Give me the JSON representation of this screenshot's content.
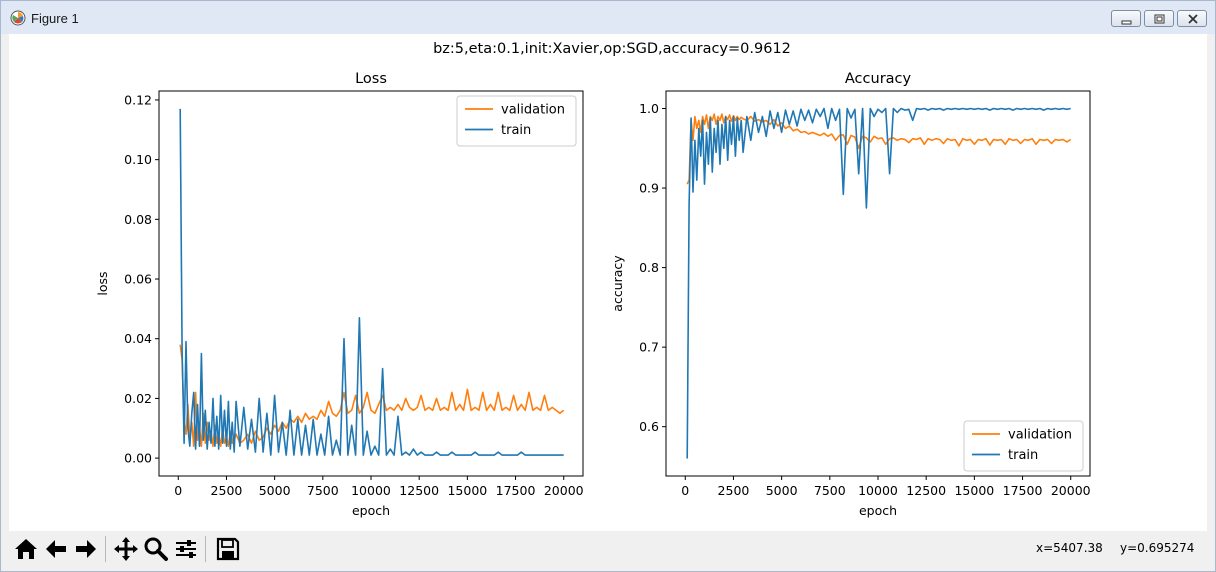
{
  "window": {
    "title": "Figure 1"
  },
  "figure": {
    "suptitle": "bz:5,eta:0.1,init:Xavier,op:SGD,accuracy=0.9612"
  },
  "status": {
    "x_readout": "x=5407.38",
    "y_readout": "y=0.695274"
  },
  "colors": {
    "validation": "#ff7f0e",
    "train": "#1f77b4"
  },
  "toolbar": {
    "icons": [
      "home-icon",
      "back-arrow-icon",
      "forward-arrow-icon",
      "pan-icon",
      "zoom-icon",
      "configure-subplots-icon",
      "save-icon"
    ]
  },
  "chart_data": [
    {
      "type": "line",
      "title": "Loss",
      "xlabel": "epoch",
      "ylabel": "loss",
      "xlim": [
        -1000,
        21000
      ],
      "ylim": [
        -0.006,
        0.123
      ],
      "xticks": [
        0,
        2500,
        5000,
        7500,
        10000,
        12500,
        15000,
        17500,
        20000
      ],
      "yticks": [
        0.0,
        0.02,
        0.04,
        0.06,
        0.08,
        0.1,
        0.12
      ],
      "ytick_labels": [
        "0.00",
        "0.02",
        "0.04",
        "0.06",
        "0.08",
        "0.10",
        "0.12"
      ],
      "legend": "upper right",
      "series": [
        {
          "name": "validation",
          "x": [
            100,
            200,
            300,
            400,
            500,
            600,
            700,
            800,
            900,
            1000,
            1100,
            1200,
            1300,
            1400,
            1500,
            1600,
            1700,
            1800,
            1900,
            2000,
            2100,
            2200,
            2300,
            2400,
            2500,
            2600,
            2700,
            2800,
            2900,
            3000,
            3200,
            3400,
            3600,
            3800,
            4000,
            4200,
            4400,
            4600,
            4800,
            5000,
            5200,
            5400,
            5600,
            5800,
            6000,
            6200,
            6400,
            6600,
            6800,
            7000,
            7200,
            7400,
            7600,
            7800,
            8000,
            8200,
            8400,
            8600,
            8800,
            9000,
            9200,
            9400,
            9600,
            9800,
            10000,
            10200,
            10400,
            10600,
            10800,
            11000,
            11200,
            11400,
            11600,
            11800,
            12000,
            12200,
            12400,
            12600,
            12800,
            13000,
            13200,
            13400,
            13600,
            13800,
            14000,
            14200,
            14400,
            14600,
            14800,
            15000,
            15200,
            15400,
            15600,
            15800,
            16000,
            16200,
            16400,
            16600,
            16800,
            17000,
            17200,
            17400,
            17600,
            17800,
            18000,
            18200,
            18400,
            18600,
            18800,
            19000,
            19200,
            19400,
            19600,
            19800,
            20000
          ],
          "y": [
            0.038,
            0.033,
            0.012,
            0.008,
            0.018,
            0.006,
            0.012,
            0.004,
            0.022,
            0.006,
            0.01,
            0.004,
            0.015,
            0.005,
            0.012,
            0.006,
            0.009,
            0.004,
            0.011,
            0.005,
            0.008,
            0.004,
            0.01,
            0.005,
            0.007,
            0.004,
            0.009,
            0.005,
            0.006,
            0.008,
            0.005,
            0.006,
            0.008,
            0.005,
            0.009,
            0.006,
            0.007,
            0.01,
            0.008,
            0.011,
            0.009,
            0.012,
            0.01,
            0.013,
            0.012,
            0.014,
            0.012,
            0.015,
            0.013,
            0.014,
            0.013,
            0.016,
            0.014,
            0.019,
            0.015,
            0.014,
            0.016,
            0.022,
            0.015,
            0.016,
            0.021,
            0.015,
            0.017,
            0.022,
            0.016,
            0.015,
            0.018,
            0.021,
            0.016,
            0.017,
            0.016,
            0.018,
            0.016,
            0.02,
            0.017,
            0.016,
            0.017,
            0.021,
            0.016,
            0.017,
            0.016,
            0.02,
            0.016,
            0.017,
            0.016,
            0.022,
            0.016,
            0.018,
            0.016,
            0.023,
            0.016,
            0.017,
            0.016,
            0.022,
            0.016,
            0.018,
            0.016,
            0.022,
            0.016,
            0.017,
            0.016,
            0.021,
            0.016,
            0.018,
            0.016,
            0.022,
            0.016,
            0.017,
            0.016,
            0.021,
            0.016,
            0.017,
            0.016,
            0.015,
            0.016
          ]
        },
        {
          "name": "train",
          "x": [
            100,
            200,
            300,
            400,
            500,
            600,
            700,
            800,
            900,
            1000,
            1100,
            1200,
            1300,
            1400,
            1500,
            1600,
            1700,
            1800,
            1900,
            2000,
            2100,
            2200,
            2300,
            2400,
            2500,
            2600,
            2700,
            2800,
            2900,
            3000,
            3200,
            3400,
            3600,
            3800,
            4000,
            4200,
            4400,
            4600,
            4800,
            5000,
            5200,
            5400,
            5600,
            5800,
            6000,
            6200,
            6400,
            6600,
            6800,
            7000,
            7200,
            7400,
            7600,
            7800,
            8000,
            8200,
            8400,
            8600,
            8800,
            9000,
            9200,
            9400,
            9600,
            9800,
            10000,
            10200,
            10400,
            10600,
            10800,
            11000,
            11200,
            11400,
            11600,
            11800,
            12000,
            12200,
            12400,
            12600,
            12800,
            13000,
            13200,
            13400,
            13600,
            13800,
            14000,
            14200,
            14400,
            14600,
            14800,
            15000,
            15200,
            15400,
            15600,
            15800,
            16000,
            16200,
            16400,
            16600,
            16800,
            17000,
            17200,
            17400,
            17600,
            17800,
            18000,
            18200,
            18400,
            18600,
            18800,
            19000,
            19200,
            19400,
            19600,
            19800,
            20000
          ],
          "y": [
            0.117,
            0.036,
            0.005,
            0.039,
            0.01,
            0.004,
            0.015,
            0.022,
            0.003,
            0.018,
            0.004,
            0.035,
            0.006,
            0.016,
            0.003,
            0.012,
            0.005,
            0.02,
            0.004,
            0.014,
            0.003,
            0.021,
            0.005,
            0.016,
            0.004,
            0.019,
            0.003,
            0.012,
            0.002,
            0.019,
            0.004,
            0.017,
            0.003,
            0.013,
            0.002,
            0.02,
            0.002,
            0.015,
            0.001,
            0.021,
            0.002,
            0.012,
            0.001,
            0.016,
            0.001,
            0.013,
            0.001,
            0.011,
            0.001,
            0.013,
            0.001,
            0.008,
            0.001,
            0.014,
            0.001,
            0.006,
            0.001,
            0.04,
            0.001,
            0.011,
            0.001,
            0.047,
            0.001,
            0.009,
            0.001,
            0.004,
            0.001,
            0.03,
            0.001,
            0.003,
            0.001,
            0.014,
            0.001,
            0.002,
            0.001,
            0.003,
            0.001,
            0.002,
            0.001,
            0.001,
            0.001,
            0.002,
            0.001,
            0.001,
            0.001,
            0.002,
            0.001,
            0.001,
            0.001,
            0.001,
            0.001,
            0.002,
            0.001,
            0.001,
            0.001,
            0.001,
            0.001,
            0.002,
            0.001,
            0.001,
            0.001,
            0.001,
            0.001,
            0.002,
            0.001,
            0.001,
            0.001,
            0.001,
            0.001,
            0.001,
            0.001,
            0.001,
            0.001,
            0.001,
            0.001
          ]
        }
      ]
    },
    {
      "type": "line",
      "title": "Accuracy",
      "xlabel": "epoch",
      "ylabel": "accuracy",
      "xlim": [
        -1000,
        21000
      ],
      "ylim": [
        0.538,
        1.022
      ],
      "xticks": [
        0,
        2500,
        5000,
        7500,
        10000,
        12500,
        15000,
        17500,
        20000
      ],
      "yticks": [
        0.6,
        0.7,
        0.8,
        0.9,
        1.0
      ],
      "ytick_labels": [
        "0.6",
        "0.7",
        "0.8",
        "0.9",
        "1.0"
      ],
      "legend": "lower right",
      "series": [
        {
          "name": "validation",
          "x": [
            100,
            200,
            300,
            400,
            500,
            600,
            700,
            800,
            900,
            1000,
            1100,
            1200,
            1300,
            1400,
            1500,
            1600,
            1700,
            1800,
            1900,
            2000,
            2100,
            2200,
            2300,
            2400,
            2500,
            2600,
            2700,
            2800,
            2900,
            3000,
            3200,
            3400,
            3600,
            3800,
            4000,
            4200,
            4400,
            4600,
            4800,
            5000,
            5200,
            5400,
            5600,
            5800,
            6000,
            6200,
            6400,
            6600,
            6800,
            7000,
            7200,
            7400,
            7600,
            7800,
            8000,
            8200,
            8400,
            8600,
            8800,
            9000,
            9200,
            9400,
            9600,
            9800,
            10000,
            10200,
            10400,
            10600,
            10800,
            11000,
            11200,
            11400,
            11600,
            11800,
            12000,
            12200,
            12400,
            12600,
            12800,
            13000,
            13200,
            13400,
            13600,
            13800,
            14000,
            14200,
            14400,
            14600,
            14800,
            15000,
            15200,
            15400,
            15600,
            15800,
            16000,
            16200,
            16400,
            16600,
            16800,
            17000,
            17200,
            17400,
            17600,
            17800,
            18000,
            18200,
            18400,
            18600,
            18800,
            19000,
            19200,
            19400,
            19600,
            19800,
            20000
          ],
          "y": [
            0.905,
            0.91,
            0.985,
            0.96,
            0.99,
            0.975,
            0.985,
            0.97,
            0.99,
            0.98,
            0.992,
            0.975,
            0.99,
            0.985,
            0.993,
            0.98,
            0.99,
            0.985,
            0.993,
            0.982,
            0.99,
            0.986,
            0.992,
            0.984,
            0.991,
            0.985,
            0.99,
            0.986,
            0.989,
            0.987,
            0.985,
            0.99,
            0.984,
            0.986,
            0.983,
            0.985,
            0.98,
            0.986,
            0.978,
            0.982,
            0.975,
            0.978,
            0.972,
            0.974,
            0.97,
            0.971,
            0.968,
            0.97,
            0.968,
            0.966,
            0.969,
            0.965,
            0.968,
            0.96,
            0.966,
            0.967,
            0.955,
            0.966,
            0.964,
            0.95,
            0.965,
            0.963,
            0.958,
            0.965,
            0.962,
            0.963,
            0.955,
            0.962,
            0.963,
            0.96,
            0.962,
            0.961,
            0.957,
            0.962,
            0.961,
            0.963,
            0.955,
            0.962,
            0.96,
            0.962,
            0.961,
            0.956,
            0.962,
            0.96,
            0.961,
            0.953,
            0.962,
            0.96,
            0.961,
            0.955,
            0.961,
            0.96,
            0.962,
            0.954,
            0.961,
            0.96,
            0.961,
            0.955,
            0.962,
            0.96,
            0.961,
            0.956,
            0.961,
            0.96,
            0.962,
            0.955,
            0.961,
            0.96,
            0.961,
            0.956,
            0.961,
            0.96,
            0.961,
            0.958,
            0.961
          ]
        },
        {
          "name": "train",
          "x": [
            100,
            200,
            300,
            400,
            500,
            600,
            700,
            800,
            900,
            1000,
            1100,
            1200,
            1300,
            1400,
            1500,
            1600,
            1700,
            1800,
            1900,
            2000,
            2100,
            2200,
            2300,
            2400,
            2500,
            2600,
            2700,
            2800,
            2900,
            3000,
            3200,
            3400,
            3600,
            3800,
            4000,
            4200,
            4400,
            4600,
            4800,
            5000,
            5200,
            5400,
            5600,
            5800,
            6000,
            6200,
            6400,
            6600,
            6800,
            7000,
            7200,
            7400,
            7600,
            7800,
            8000,
            8200,
            8400,
            8600,
            8800,
            9000,
            9200,
            9400,
            9600,
            9800,
            10000,
            10200,
            10400,
            10600,
            10800,
            11000,
            11200,
            11400,
            11600,
            11800,
            12000,
            12200,
            12400,
            12600,
            12800,
            13000,
            13200,
            13400,
            13600,
            13800,
            14000,
            14200,
            14400,
            14600,
            14800,
            15000,
            15200,
            15400,
            15600,
            15800,
            16000,
            16200,
            16400,
            16600,
            16800,
            17000,
            17200,
            17400,
            17600,
            17800,
            18000,
            18200,
            18400,
            18600,
            18800,
            19000,
            19200,
            19400,
            19600,
            19800,
            20000
          ],
          "y": [
            0.56,
            0.88,
            0.988,
            0.895,
            0.96,
            0.91,
            0.975,
            0.94,
            0.985,
            0.905,
            0.97,
            0.93,
            0.988,
            0.92,
            0.975,
            0.945,
            0.985,
            0.93,
            0.98,
            0.95,
            0.99,
            0.935,
            0.985,
            0.955,
            0.99,
            0.94,
            0.988,
            0.96,
            0.985,
            0.945,
            0.99,
            0.96,
            0.995,
            0.97,
            0.99,
            0.965,
            0.997,
            0.975,
            0.995,
            0.97,
            0.998,
            0.98,
            0.997,
            0.978,
            0.999,
            0.985,
            0.998,
            0.982,
            0.999,
            0.99,
            1.0,
            0.975,
            1.0,
            0.985,
            0.999,
            0.892,
            1.0,
            0.988,
            0.999,
            0.918,
            1.0,
            0.875,
            1.0,
            0.99,
            0.999,
            0.995,
            1.0,
            0.918,
            1.0,
            0.995,
            1.0,
            0.998,
            0.999,
            0.985,
            1.0,
            0.999,
            1.0,
            0.998,
            1.0,
            0.999,
            1.0,
            0.998,
            1.0,
            0.999,
            1.0,
            0.999,
            1.0,
            0.999,
            1.0,
            0.999,
            1.0,
            0.999,
            1.0,
            0.998,
            1.0,
            0.999,
            1.0,
            0.999,
            1.0,
            0.998,
            1.0,
            0.999,
            1.0,
            0.999,
            1.0,
            0.999,
            1.0,
            0.998,
            1.0,
            0.999,
            1.0,
            0.999,
            1.0,
            0.999,
            1.0
          ]
        }
      ]
    }
  ]
}
